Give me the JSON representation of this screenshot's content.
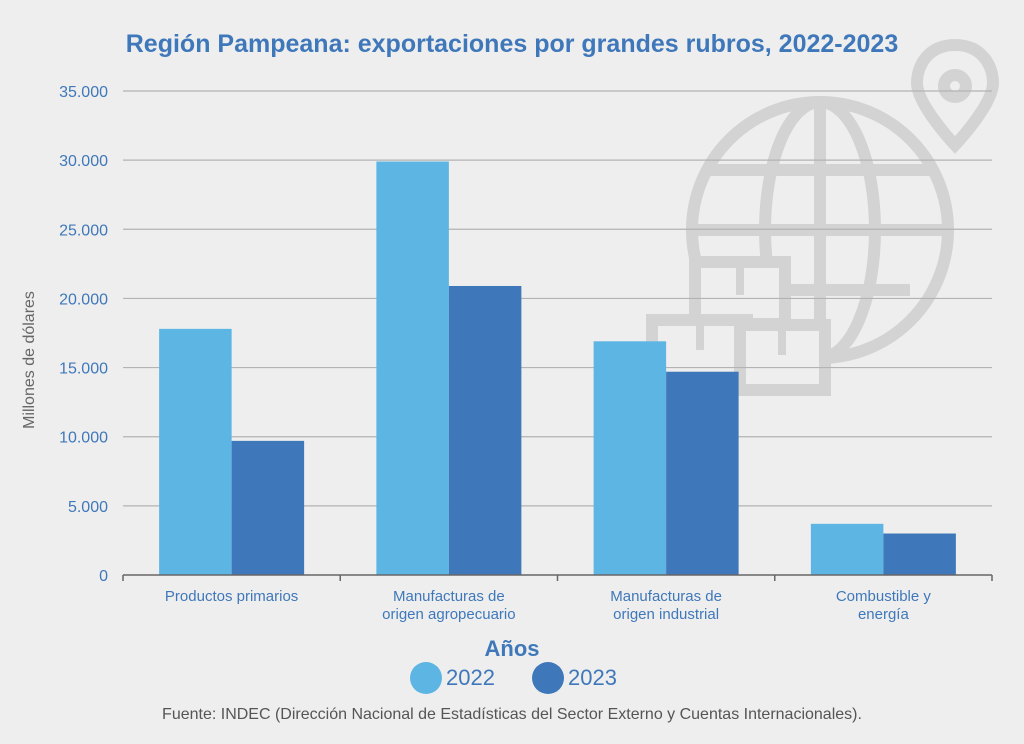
{
  "chart_data": {
    "type": "bar",
    "title": "Región Pampeana: exportaciones por grandes rubros, 2022-2023",
    "ylabel": "Millones de dólares",
    "legend_title": "Años",
    "ylim": [
      0,
      35000
    ],
    "yticks": [
      "0",
      "5.000",
      "10.000",
      "15.000",
      "20.000",
      "25.000",
      "30.000",
      "35.000"
    ],
    "categories": [
      [
        "Productos primarios"
      ],
      [
        "Manufacturas de",
        "origen agropecuario"
      ],
      [
        "Manufacturas de",
        "origen industrial"
      ],
      [
        "Combustible y",
        "energía"
      ]
    ],
    "series": [
      {
        "name": "2022",
        "color": "#5db5e4",
        "values": [
          17800,
          29900,
          16900,
          3700
        ]
      },
      {
        "name": "2023",
        "color": "#3f78ba",
        "values": [
          9700,
          20900,
          14700,
          3000
        ]
      }
    ],
    "grid": true,
    "legend_position": "bottom-center"
  },
  "watermark_icon": "globe-with-pin-and-boxes-icon",
  "source": "Fuente: INDEC (Dirección Nacional de Estadísticas del Sector Externo y Cuentas Internacionales)."
}
